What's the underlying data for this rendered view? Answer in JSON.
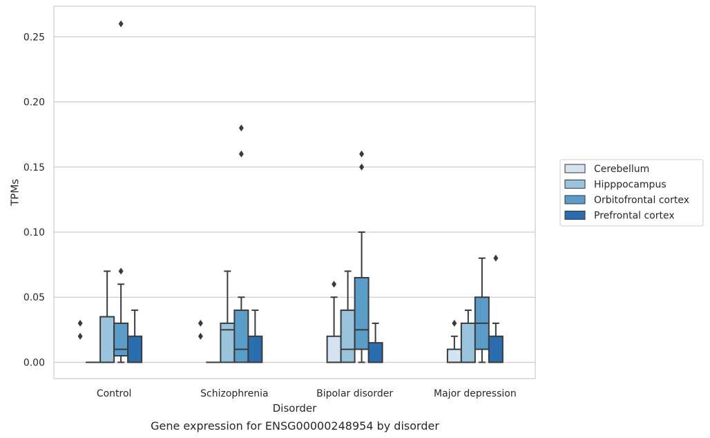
{
  "caption": "Gene expression for ENSG00000248954 by disorder",
  "chart_data": {
    "type": "boxplot",
    "xlabel": "Disorder",
    "ylabel": "TPMs",
    "ylim": [
      -0.0125,
      0.2735
    ],
    "yticks": [
      0.0,
      0.05,
      0.1,
      0.15,
      0.2,
      0.25
    ],
    "ytick_labels": [
      "0.00",
      "0.05",
      "0.10",
      "0.15",
      "0.20",
      "0.25"
    ],
    "grid": true,
    "legend_position": "right",
    "categories": [
      "Control",
      "Schizophrenia",
      "Bipolar disorder",
      "Major depression"
    ],
    "series": [
      {
        "name": "Cerebellum",
        "color": "#d4e3f2",
        "boxes": [
          {
            "q1": 0.0,
            "median": 0.0,
            "q3": 0.0,
            "whisker_low": 0.0,
            "whisker_high": 0.0,
            "outliers": []
          },
          {
            "q1": 0.0,
            "median": 0.0,
            "q3": 0.0,
            "whisker_low": 0.0,
            "whisker_high": 0.0,
            "outliers": []
          },
          {
            "q1": 0.0,
            "median": 0.0,
            "q3": 0.02,
            "whisker_low": 0.0,
            "whisker_high": 0.05,
            "outliers": [
              0.06
            ]
          },
          {
            "q1": 0.0,
            "median": 0.0,
            "q3": 0.01,
            "whisker_low": 0.0,
            "whisker_high": 0.02,
            "outliers": [
              0.03
            ]
          }
        ]
      },
      {
        "name": "Hipppocampus",
        "color": "#9ac4de",
        "boxes": [
          {
            "q1": 0.0,
            "median": 0.0,
            "q3": 0.035,
            "whisker_low": 0.0,
            "whisker_high": 0.07,
            "outliers": []
          },
          {
            "q1": 0.0,
            "median": 0.025,
            "q3": 0.03,
            "whisker_low": 0.0,
            "whisker_high": 0.07,
            "outliers": []
          },
          {
            "q1": 0.0,
            "median": 0.01,
            "q3": 0.04,
            "whisker_low": 0.0,
            "whisker_high": 0.07,
            "outliers": []
          },
          {
            "q1": 0.0,
            "median": 0.0,
            "q3": 0.03,
            "whisker_low": 0.0,
            "whisker_high": 0.04,
            "outliers": []
          }
        ]
      },
      {
        "name": "Orbitofrontal cortex",
        "color": "#5b9dc9",
        "boxes": [
          {
            "q1": 0.005,
            "median": 0.01,
            "q3": 0.03,
            "whisker_low": 0.0,
            "whisker_high": 0.06,
            "outliers": [
              0.07,
              0.26
            ]
          },
          {
            "q1": 0.0,
            "median": 0.01,
            "q3": 0.04,
            "whisker_low": 0.0,
            "whisker_high": 0.05,
            "outliers": [
              0.16,
              0.18
            ]
          },
          {
            "q1": 0.01,
            "median": 0.025,
            "q3": 0.065,
            "whisker_low": 0.0,
            "whisker_high": 0.1,
            "outliers": [
              0.15,
              0.16
            ]
          },
          {
            "q1": 0.01,
            "median": 0.03,
            "q3": 0.05,
            "whisker_low": 0.0,
            "whisker_high": 0.08,
            "outliers": []
          }
        ]
      },
      {
        "name": "Prefrontal cortex",
        "color": "#2a6eb0",
        "boxes": [
          {
            "q1": 0.0,
            "median": 0.0,
            "q3": 0.02,
            "whisker_low": 0.0,
            "whisker_high": 0.04,
            "outliers": []
          },
          {
            "q1": 0.0,
            "median": 0.0,
            "q3": 0.02,
            "whisker_low": 0.0,
            "whisker_high": 0.04,
            "outliers": []
          },
          {
            "q1": 0.0,
            "median": 0.0,
            "q3": 0.015,
            "whisker_low": 0.0,
            "whisker_high": 0.03,
            "outliers": []
          },
          {
            "q1": 0.0,
            "median": 0.0,
            "q3": 0.02,
            "whisker_low": 0.0,
            "whisker_high": 0.03,
            "outliers": [
              0.08
            ]
          }
        ]
      }
    ],
    "extra_outliers": [
      {
        "category": "Control",
        "group": "left",
        "values": [
          0.02,
          0.03
        ]
      },
      {
        "category": "Schizophrenia",
        "group": "left",
        "values": [
          0.02,
          0.03
        ]
      }
    ]
  }
}
